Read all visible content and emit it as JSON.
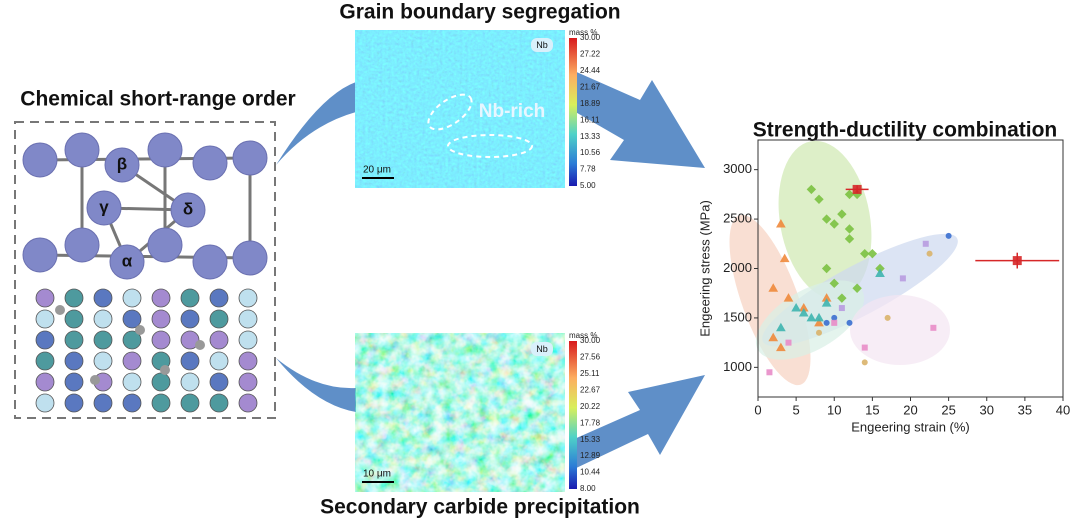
{
  "panels": {
    "left": {
      "title": "Chemical short-range order",
      "sites": [
        "β",
        "γ",
        "δ",
        "α"
      ]
    },
    "top_map": {
      "title": "Grain boundary segregation",
      "element": "Nb",
      "annotation": "Nb-rich",
      "scale_bar": "20 μm",
      "colorbar_unit": "mass %",
      "colorbar_labels": [
        "30.00",
        "27.22",
        "24.44",
        "21.67",
        "18.89",
        "16.11",
        "13.33",
        "10.56",
        "7.78",
        "5.00"
      ]
    },
    "bottom_map": {
      "title": "Secondary carbide precipitation",
      "element": "Nb",
      "scale_bar": "10 μm",
      "colorbar_unit": "mass %",
      "colorbar_labels": [
        "30.00",
        "27.56",
        "25.11",
        "22.67",
        "20.22",
        "17.78",
        "15.33",
        "12.89",
        "10.44",
        "8.00"
      ]
    }
  },
  "chart_data": {
    "type": "scatter",
    "title": "Strength-ductility combination",
    "x_label": "Engeering strain (%)",
    "y_label": "Engeering stress (MPa)",
    "xlim": [
      0,
      40
    ],
    "xticks": [
      0,
      5,
      10,
      15,
      20,
      25,
      30,
      35,
      40
    ],
    "ylim": [
      700,
      3300
    ],
    "yticks": [
      1000,
      1500,
      2000,
      2500,
      3000
    ],
    "series": [
      {
        "color": "#7cc242",
        "marker": "diamond",
        "x": [
          7,
          8,
          9,
          10,
          11,
          12,
          12,
          13,
          14,
          9,
          10,
          11,
          15,
          16,
          13,
          12
        ],
        "values": [
          2800,
          2700,
          2500,
          2450,
          2550,
          2400,
          2750,
          2750,
          2150,
          2000,
          1850,
          1700,
          2150,
          2000,
          1800,
          2300
        ]
      },
      {
        "color": "#f08a3c",
        "marker": "triangle",
        "x": [
          3,
          3.5,
          2,
          4,
          6,
          9,
          2,
          8,
          3
        ],
        "values": [
          2450,
          2100,
          1800,
          1700,
          1600,
          1700,
          1300,
          1450,
          1200
        ]
      },
      {
        "color": "#3fb5b0",
        "marker": "triangle",
        "x": [
          5,
          6,
          7,
          8,
          16,
          3,
          9
        ],
        "values": [
          1600,
          1550,
          1500,
          1500,
          1950,
          1400,
          1650
        ]
      },
      {
        "color": "#3a6fd0",
        "marker": "circle",
        "x": [
          25,
          10,
          12,
          9
        ],
        "values": [
          2330,
          1500,
          1450,
          1450
        ]
      },
      {
        "color": "#e88cc8",
        "marker": "square",
        "x": [
          10,
          14,
          4,
          23,
          1.5
        ],
        "values": [
          1450,
          1200,
          1250,
          1400,
          950
        ]
      },
      {
        "color": "#d9b36a",
        "marker": "circle",
        "x": [
          22.5,
          17,
          14,
          8
        ],
        "values": [
          2150,
          1500,
          1050,
          1350
        ]
      },
      {
        "color": "#b89be0",
        "marker": "square",
        "x": [
          22,
          19,
          11
        ],
        "values": [
          2250,
          1900,
          1600
        ]
      },
      {
        "color": "#d62728",
        "marker": "square",
        "x": [
          13,
          34
        ],
        "values": [
          2800,
          2080
        ],
        "xerr": [
          1.5,
          5.5
        ],
        "yerr": [
          40,
          80
        ]
      }
    ]
  }
}
